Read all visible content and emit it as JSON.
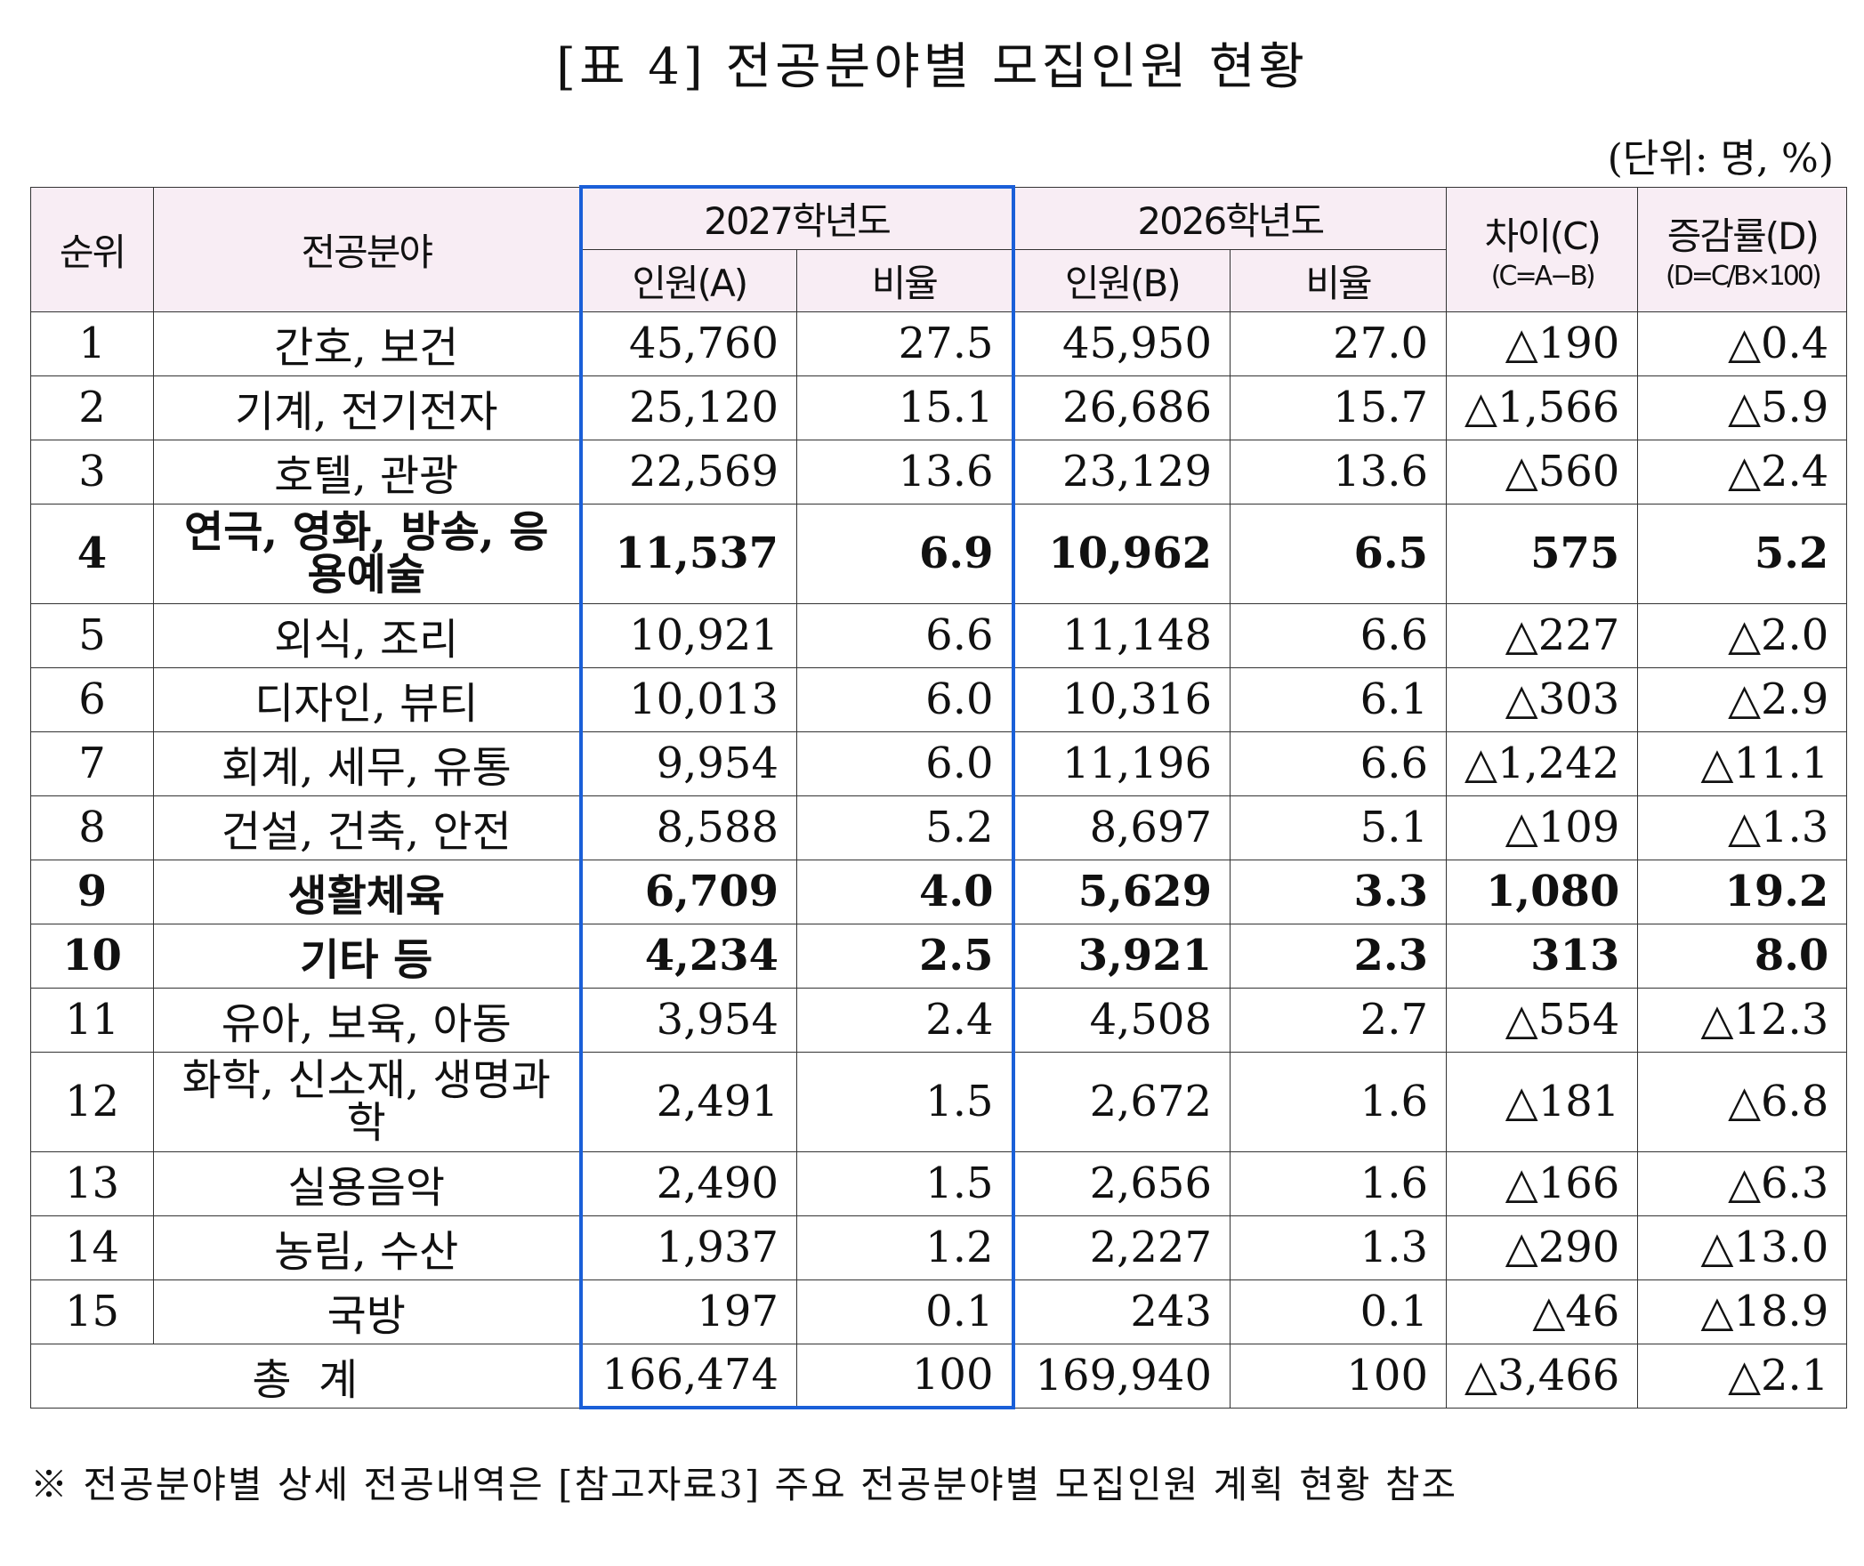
{
  "title": "[표 4] 전공분야별 모집인원 현황",
  "unit": "(단위: 명, %)",
  "headers": {
    "rank": "순위",
    "field": "전공분야",
    "y2027": "2027학년도",
    "y2026": "2026학년도",
    "diff": "차이(C)",
    "diff_formula": "(C=A−B)",
    "rate": "증감률(D)",
    "rate_formula": "(D=C/B×100)",
    "count_a": "인원(A)",
    "ratio_a": "비율",
    "count_b": "인원(B)",
    "ratio_b": "비율"
  },
  "rows": [
    {
      "rank": "1",
      "field": "간호, 보건",
      "a": "45,760",
      "ra": "27.5",
      "b": "45,950",
      "rb": "27.0",
      "c": "△190",
      "d": "△0.4"
    },
    {
      "rank": "2",
      "field": "기계, 전기전자",
      "a": "25,120",
      "ra": "15.1",
      "b": "26,686",
      "rb": "15.7",
      "c": "△1,566",
      "d": "△5.9"
    },
    {
      "rank": "3",
      "field": "호텔, 관광",
      "a": "22,569",
      "ra": "13.6",
      "b": "23,129",
      "rb": "13.6",
      "c": "△560",
      "d": "△2.4"
    },
    {
      "rank": "4",
      "field": "연극, 영화, 방송, 응용예술",
      "a": "11,537",
      "ra": "6.9",
      "b": "10,962",
      "rb": "6.5",
      "c": "575",
      "d": "5.2",
      "bold": true,
      "tall": true
    },
    {
      "rank": "5",
      "field": "외식, 조리",
      "a": "10,921",
      "ra": "6.6",
      "b": "11,148",
      "rb": "6.6",
      "c": "△227",
      "d": "△2.0"
    },
    {
      "rank": "6",
      "field": "디자인, 뷰티",
      "a": "10,013",
      "ra": "6.0",
      "b": "10,316",
      "rb": "6.1",
      "c": "△303",
      "d": "△2.9"
    },
    {
      "rank": "7",
      "field": "회계, 세무, 유통",
      "a": "9,954",
      "ra": "6.0",
      "b": "11,196",
      "rb": "6.6",
      "c": "△1,242",
      "d": "△11.1"
    },
    {
      "rank": "8",
      "field": "건설, 건축, 안전",
      "a": "8,588",
      "ra": "5.2",
      "b": "8,697",
      "rb": "5.1",
      "c": "△109",
      "d": "△1.3"
    },
    {
      "rank": "9",
      "field": "생활체육",
      "a": "6,709",
      "ra": "4.0",
      "b": "5,629",
      "rb": "3.3",
      "c": "1,080",
      "d": "19.2",
      "bold": true
    },
    {
      "rank": "10",
      "field": "기타 등",
      "a": "4,234",
      "ra": "2.5",
      "b": "3,921",
      "rb": "2.3",
      "c": "313",
      "d": "8.0",
      "bold": true
    },
    {
      "rank": "11",
      "field": "유아, 보육, 아동",
      "a": "3,954",
      "ra": "2.4",
      "b": "4,508",
      "rb": "2.7",
      "c": "△554",
      "d": "△12.3"
    },
    {
      "rank": "12",
      "field": "화학, 신소재, 생명과학",
      "a": "2,491",
      "ra": "1.5",
      "b": "2,672",
      "rb": "1.6",
      "c": "△181",
      "d": "△6.8",
      "tall": true
    },
    {
      "rank": "13",
      "field": "실용음악",
      "a": "2,490",
      "ra": "1.5",
      "b": "2,656",
      "rb": "1.6",
      "c": "△166",
      "d": "△6.3"
    },
    {
      "rank": "14",
      "field": "농림, 수산",
      "a": "1,937",
      "ra": "1.2",
      "b": "2,227",
      "rb": "1.3",
      "c": "△290",
      "d": "△13.0"
    },
    {
      "rank": "15",
      "field": "국방",
      "a": "197",
      "ra": "0.1",
      "b": "243",
      "rb": "0.1",
      "c": "△46",
      "d": "△18.9"
    }
  ],
  "total": {
    "label": "총  계",
    "a": "166,474",
    "ra": "100",
    "b": "169,940",
    "rb": "100",
    "c": "△3,466",
    "d": "△2.1"
  },
  "note": "※ 전공분야별 상세 전공내역은 [참고자료3] 주요 전공분야별 모집인원 계획 현황 참조"
}
